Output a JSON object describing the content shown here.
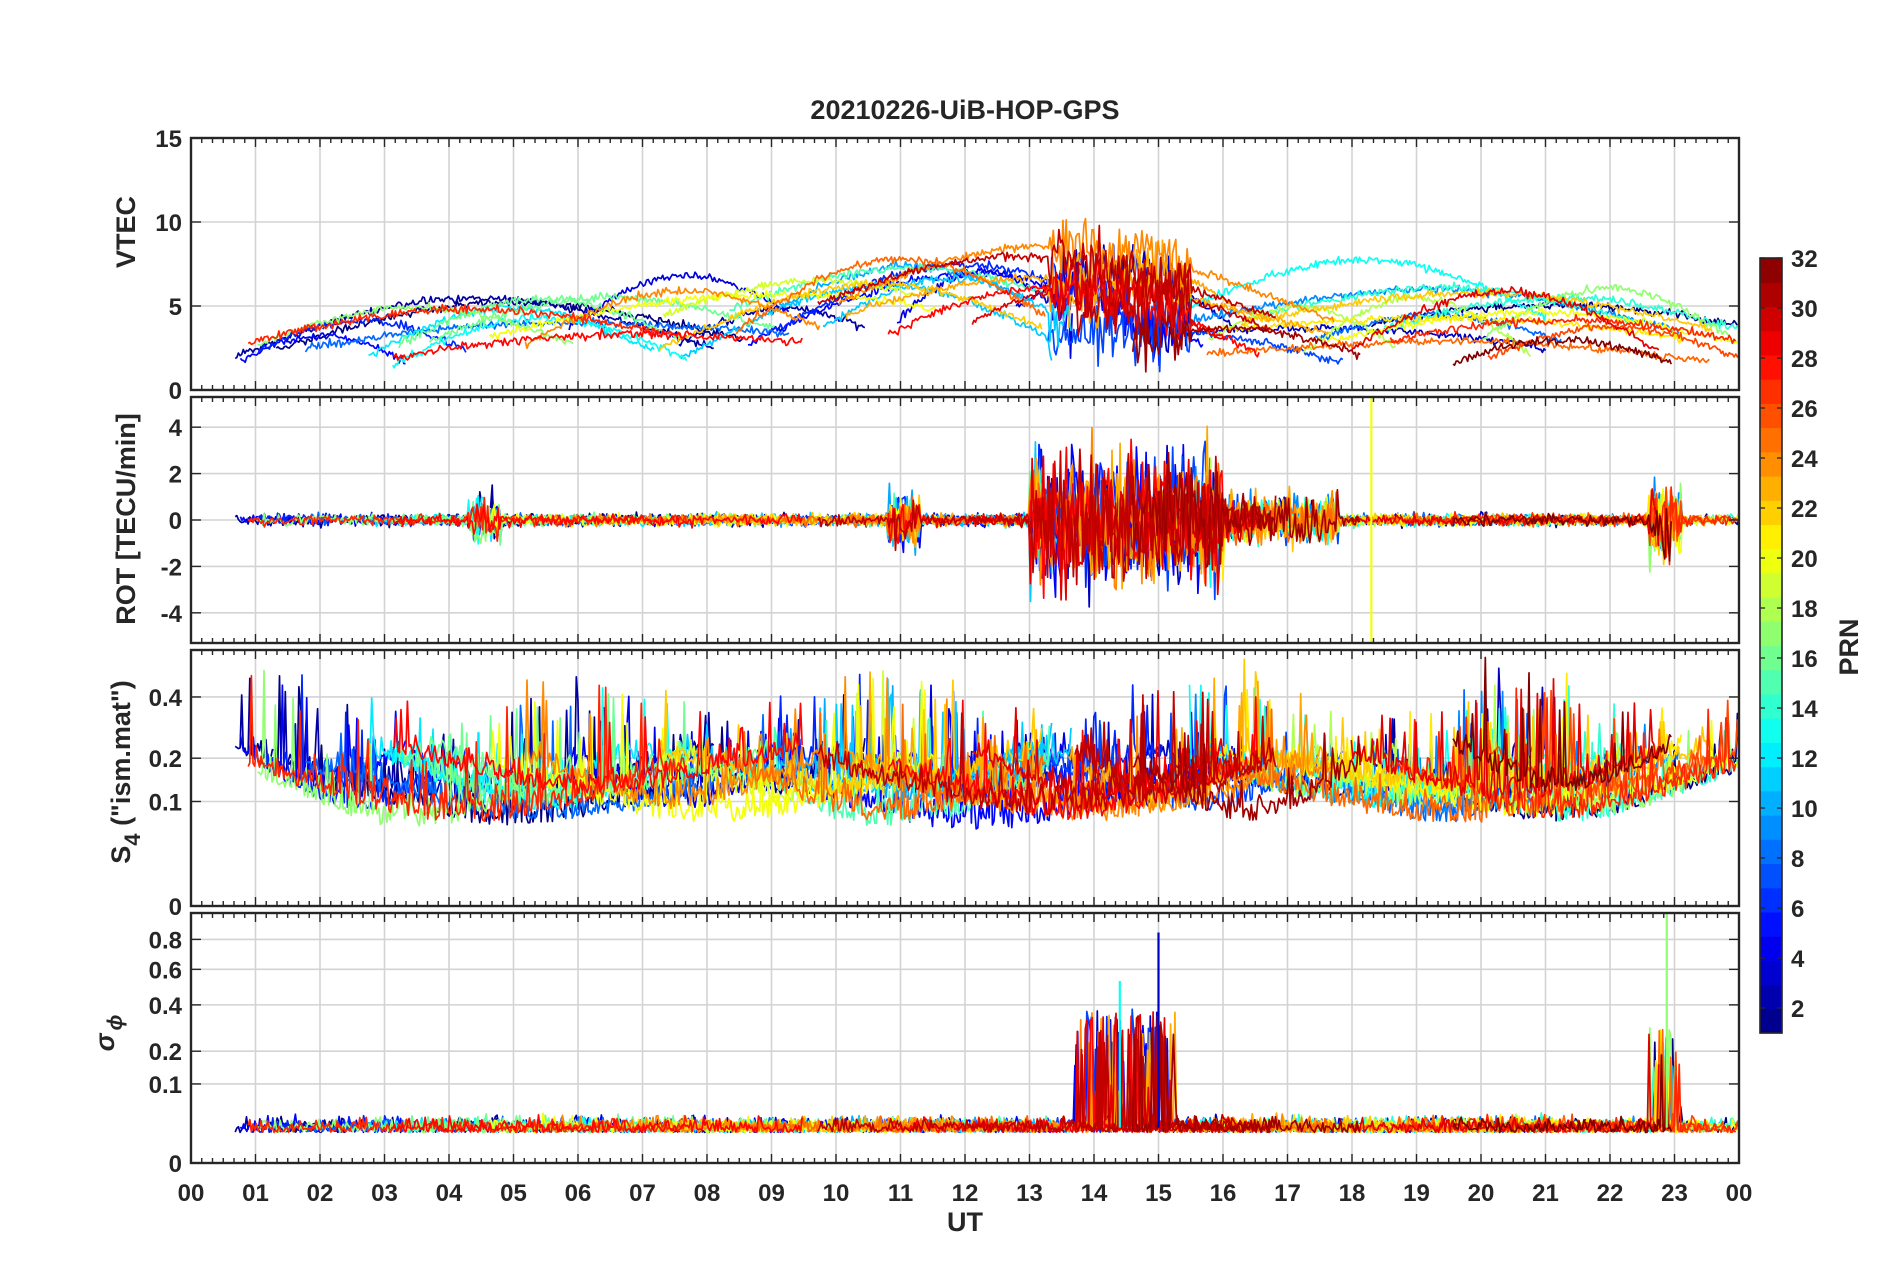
{
  "chart_data": {
    "type": "line",
    "title": "20210226-UiB-HOP-GPS",
    "xlabel": "UT",
    "xlim": [
      0,
      24
    ],
    "x_tick_labels": [
      "00",
      "01",
      "02",
      "03",
      "04",
      "05",
      "06",
      "07",
      "08",
      "09",
      "10",
      "11",
      "12",
      "13",
      "14",
      "15",
      "16",
      "17",
      "18",
      "19",
      "20",
      "21",
      "22",
      "23",
      "00"
    ],
    "panels": [
      {
        "name": "vtec",
        "ylabel": "VTEC",
        "ylim": [
          0,
          15
        ],
        "y_ticks": [
          0,
          5,
          10,
          15
        ],
        "y_tick_labels": [
          "0",
          "5",
          "10",
          "15"
        ],
        "series_summary": "VTEC per satellite PRN, mostly 1-7 TECU; peak about 10 TECU near 14:30 UT"
      },
      {
        "name": "rot",
        "ylabel": "ROT [TECU/min]",
        "ylim": [
          -5.3,
          5.3
        ],
        "y_ticks": [
          -4,
          -2,
          0,
          2,
          4
        ],
        "y_tick_labels": [
          "-4",
          "-2",
          "0",
          "2",
          "4"
        ],
        "series_summary": "Rate of TEC mostly within +/-0.5; strong fluctuations up to +/-4 between 13 and 16 UT"
      },
      {
        "name": "s4",
        "ylabel_main": "S",
        "ylabel_sub": "4",
        "ylabel_rest": " (\"ism.mat\")",
        "ylim": [
          0,
          0.6
        ],
        "y_scale": "sqrt",
        "y_ticks": [
          0,
          0.1,
          0.2,
          0.4
        ],
        "y_tick_labels": [
          "0",
          "0.1",
          "0.2",
          "0.4"
        ],
        "series_summary": "Amplitude scintillation index, baseline 0.05-0.15 with bursts up to 0.6"
      },
      {
        "name": "sigma_phi",
        "ylabel_main": "σ",
        "ylabel_sub": "ϕ",
        "ylim": [
          0,
          1
        ],
        "y_scale": "sqrt",
        "y_ticks": [
          0,
          0.1,
          0.2,
          0.4,
          0.6,
          0.8
        ],
        "y_tick_labels": [
          "0",
          "0.1",
          "0.2",
          "0.4",
          "0.6",
          "0.8"
        ],
        "series_summary": "Phase scintillation index near 0.02; spikes to 0.85 at 15 UT and 1.0 near 22:50 UT"
      }
    ],
    "colorbar": {
      "label": "PRN",
      "colormap": "jet",
      "range": [
        1,
        32
      ],
      "ticks": [
        2,
        4,
        6,
        8,
        10,
        12,
        14,
        16,
        18,
        20,
        22,
        24,
        26,
        28,
        30,
        32
      ],
      "tick_labels": [
        "2",
        "4",
        "6",
        "8",
        "10",
        "12",
        "14",
        "16",
        "18",
        "20",
        "22",
        "24",
        "26",
        "28",
        "30",
        "32"
      ]
    },
    "series_prns": [
      1,
      2,
      3,
      4,
      5,
      6,
      7,
      8,
      9,
      10,
      11,
      12,
      13,
      14,
      15,
      16,
      17,
      18,
      19,
      20,
      21,
      22,
      23,
      24,
      25,
      26,
      27,
      28,
      29,
      30,
      31,
      32
    ]
  },
  "colors": {
    "axis": "#262626",
    "grid": "#d3d3d3",
    "background": "#ffffff"
  }
}
